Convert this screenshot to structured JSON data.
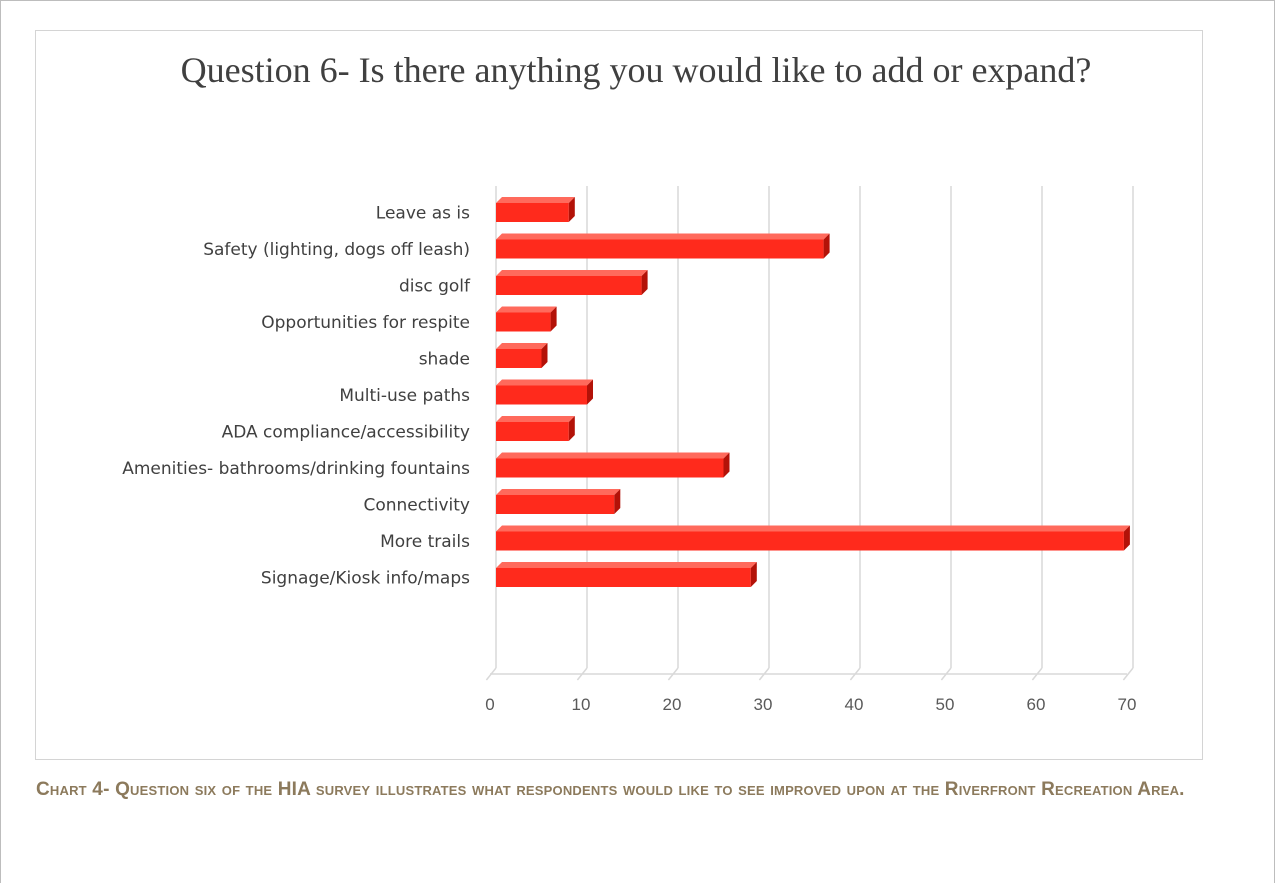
{
  "chart_data": {
    "type": "bar",
    "orientation": "horizontal",
    "title": "Question 6- Is there anything you would like to add or expand?",
    "categories": [
      "Leave as is",
      "Safety (lighting, dogs off leash)",
      "disc golf",
      "Opportunities for respite",
      "shade",
      "Multi-use paths",
      "ADA compliance/accessibility",
      "Amenities- bathrooms/drinking fountains",
      "Connectivity",
      "More trails",
      "Signage/Kiosk info/maps"
    ],
    "values": [
      8,
      36,
      16,
      6,
      5,
      10,
      8,
      25,
      13,
      69,
      28
    ],
    "xlim": [
      0,
      70
    ],
    "ticks": [
      "0",
      "10",
      "20",
      "30",
      "40",
      "50",
      "60",
      "70"
    ],
    "grid": true,
    "legend": "none",
    "bar_color": "#ff2a1c",
    "bar_side_color": "#b31208"
  },
  "caption": "Chart 4- Question six of the HIA survey illustrates what respondents would like to see improved upon at the Riverfront Recreation Area."
}
